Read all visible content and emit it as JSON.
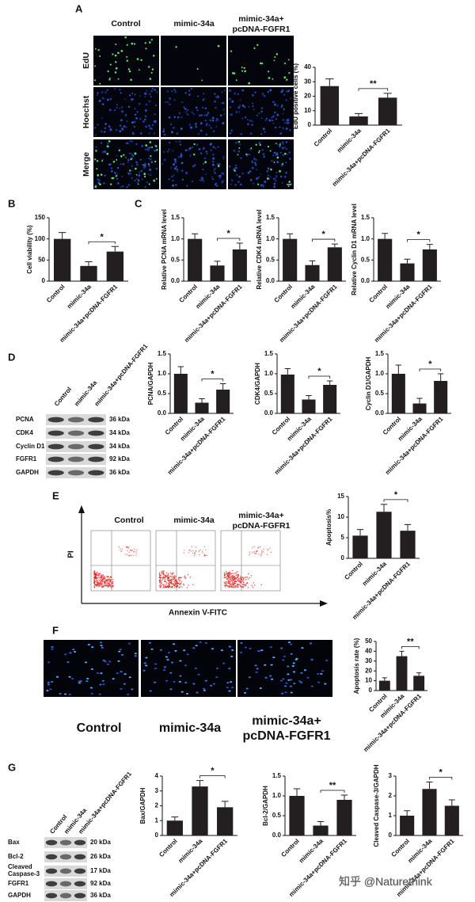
{
  "figure": {
    "panel_labels": [
      "A",
      "B",
      "C",
      "D",
      "E",
      "F",
      "G"
    ],
    "panel_a": {
      "columns": [
        "Control",
        "mimic-34a",
        "mimic-34a+",
        "pcDNA-FGFR1"
      ],
      "rows": [
        "EdU",
        "Hoechst",
        "Merge"
      ]
    },
    "panel_d": {
      "lanes": [
        "Control",
        "mimic-34a",
        "mimic-34a+pcDNA-FGFR1"
      ],
      "bands": [
        {
          "protein": "PCNA",
          "size": "36 kDa"
        },
        {
          "protein": "CDK4",
          "size": "34 kDa"
        },
        {
          "protein": "Cyclin D1",
          "size": "34 kDa"
        },
        {
          "protein": "FGFR1",
          "size": "92 kDa"
        },
        {
          "protein": "GAPDH",
          "size": "36 kDa"
        }
      ]
    },
    "panel_e": {
      "groups": [
        "Control",
        "mimic-34a",
        "mimic-34a+",
        "pcDNA-FGFR1"
      ],
      "y_axis": "PI",
      "x_axis": "Annexin V-FITC"
    },
    "panel_f": {
      "groups": [
        "Control",
        "mimic-34a",
        "mimic-34a+",
        "pcDNA-FGFR1"
      ]
    },
    "panel_g": {
      "lanes": [
        "Control",
        "mimic-34a",
        "mimic-34a+pcDNA-FGFR1"
      ],
      "bands": [
        {
          "protein": "Bax",
          "size": "20 kDa"
        },
        {
          "protein": "Bcl-2",
          "size": "26 kDa"
        },
        {
          "protein": [
            "Cleaved",
            "Caspase-3"
          ],
          "size": "17 kDa"
        },
        {
          "protein": "FGFR1",
          "size": "92 kDa"
        },
        {
          "protein": "GAPDH",
          "size": "36 kDa"
        }
      ]
    },
    "watermark": "知乎 @Naturethink"
  },
  "chart_data": [
    {
      "type": "bar",
      "ylabel": "EdU positive cells (%)",
      "categories": [
        "Control",
        "mimic-34a",
        "mimic-34a+pcDNA-FGFR1"
      ],
      "values": [
        27,
        6,
        19
      ],
      "errors": [
        5,
        2,
        3
      ],
      "significance": "**",
      "color": "#231f20",
      "ylim": [
        0,
        40
      ],
      "yticks": [
        0,
        10,
        20,
        30,
        40
      ]
    },
    {
      "type": "bar",
      "ylabel": "Cell viability (%)",
      "categories": [
        "Control",
        "mimic-34a",
        "mimic-34a+pcDNA-FGFR1"
      ],
      "values": [
        100,
        36,
        70
      ],
      "errors": [
        15,
        10,
        12
      ],
      "significance": "*",
      "color": "#231f20",
      "ylim": [
        0,
        150
      ],
      "yticks": [
        0,
        50,
        100,
        150
      ]
    },
    {
      "type": "bar",
      "ylabel": "Relative PCNA mRNA level",
      "categories": [
        "Control",
        "mimic-34a",
        "mimic-34a+pcDNA-FGFR1"
      ],
      "values": [
        1.0,
        0.37,
        0.75
      ],
      "errors": [
        0.12,
        0.1,
        0.15
      ],
      "significance": "*",
      "color": "#231f20",
      "ylim": [
        0,
        1.5
      ],
      "yticks": [
        {
          "value": 0,
          "label": "0.0"
        },
        0.5,
        {
          "value": 1,
          "label": "1.0"
        },
        1.5
      ]
    },
    {
      "type": "bar",
      "ylabel": "Relative CDK4 mRNA level",
      "categories": [
        "Control",
        "mimic-34a",
        "mimic-34a+pcDNA-FGFR1"
      ],
      "values": [
        1.0,
        0.38,
        0.8
      ],
      "errors": [
        0.12,
        0.1,
        0.08
      ],
      "significance": "*",
      "color": "#231f20",
      "ylim": [
        0,
        1.5
      ],
      "yticks": [
        {
          "value": 0,
          "label": "0.0"
        },
        0.5,
        {
          "value": 1,
          "label": "1.0"
        },
        1.5
      ]
    },
    {
      "type": "bar",
      "ylabel": "Relative Cyclin D1 mRNA level",
      "categories": [
        "Control",
        "mimic-34a",
        "mimic-34a+pcDNA-FGFR1"
      ],
      "values": [
        1.0,
        0.42,
        0.75
      ],
      "errors": [
        0.13,
        0.1,
        0.12
      ],
      "significance": "*",
      "color": "#231f20",
      "ylim": [
        0,
        1.5
      ],
      "yticks": [
        {
          "value": 0,
          "label": "0.0"
        },
        0.5,
        {
          "value": 1,
          "label": "1.0"
        },
        1.5
      ]
    },
    {
      "type": "bar",
      "ylabel": "PCNA/GAPDH",
      "categories": [
        "Control",
        "mimic-34a",
        "mimic-34a+pcDNA-FGFR1"
      ],
      "values": [
        1.0,
        0.27,
        0.6
      ],
      "errors": [
        0.18,
        0.1,
        0.15
      ],
      "significance": "*",
      "color": "#231f20",
      "ylim": [
        0,
        1.5
      ],
      "yticks": [
        {
          "value": 0,
          "label": "0.0"
        },
        0.5,
        {
          "value": 1,
          "label": "1.0"
        },
        1.5
      ]
    },
    {
      "type": "bar",
      "ylabel": "CDK4/GAPDH",
      "categories": [
        "Control",
        "mimic-34a",
        "mimic-34a+pcDNA-FGFR1"
      ],
      "values": [
        0.98,
        0.35,
        0.72
      ],
      "errors": [
        0.15,
        0.1,
        0.1
      ],
      "significance": "*",
      "color": "#231f20",
      "ylim": [
        0,
        1.5
      ],
      "yticks": [
        {
          "value": 0,
          "label": "0.0"
        },
        0.5,
        {
          "value": 1,
          "label": "1.0"
        },
        1.5
      ]
    },
    {
      "type": "bar",
      "ylabel": "Cyclin D1/GAPDH",
      "categories": [
        "Control",
        "mimic-34a",
        "mimic-34a+pcDNA-FGFR1"
      ],
      "values": [
        1.0,
        0.25,
        0.82
      ],
      "errors": [
        0.22,
        0.13,
        0.18
      ],
      "significance": "*",
      "color": "#231f20",
      "ylim": [
        0,
        1.5
      ],
      "yticks": [
        {
          "value": 0,
          "label": "0.0"
        },
        0.5,
        {
          "value": 1,
          "label": "1.0"
        },
        1.5
      ]
    },
    {
      "type": "bar",
      "ylabel": "Apoptosis%",
      "categories": [
        "Control",
        "mimic-34a",
        "mimic-34a+pcDNA-FGFR1"
      ],
      "values": [
        5.5,
        11.3,
        6.7
      ],
      "errors": [
        1.5,
        1.8,
        1.5
      ],
      "significance": "*",
      "color": "#231f20",
      "ylim": [
        0,
        15
      ],
      "yticks": [
        0,
        5,
        10,
        15
      ]
    },
    {
      "type": "bar",
      "ylabel": "Apoptosis rate (%)",
      "categories": [
        "Control",
        "mimic-34a",
        "mimic-34a+pcDNA-FGFR1"
      ],
      "values": [
        10,
        35,
        15
      ],
      "errors": [
        3,
        5,
        3
      ],
      "significance": "**",
      "color": "#231f20",
      "ylim": [
        0,
        50
      ],
      "yticks": [
        0,
        10,
        20,
        30,
        40,
        50
      ]
    },
    {
      "type": "bar",
      "ylabel": "Bax/GAPDH",
      "categories": [
        "Control",
        "mimic-34a",
        "mimic-34a+pcDNA-FGFR1"
      ],
      "values": [
        1.0,
        3.3,
        1.9
      ],
      "errors": [
        0.25,
        0.4,
        0.4
      ],
      "significance": "*",
      "color": "#231f20",
      "ylim": [
        0,
        4
      ],
      "yticks": [
        0,
        1,
        2,
        3,
        4
      ]
    },
    {
      "type": "bar",
      "ylabel": "Bcl-2/GAPDH",
      "categories": [
        "Control",
        "mimic-34a",
        "mimic-34a+pcDNA-FGFR1"
      ],
      "values": [
        1.0,
        0.25,
        0.9
      ],
      "errors": [
        0.18,
        0.1,
        0.12
      ],
      "significance": "**",
      "color": "#231f20",
      "ylim": [
        0,
        1.5
      ],
      "yticks": [
        {
          "value": 0,
          "label": "0.0"
        },
        0.5,
        {
          "value": 1,
          "label": "1.0"
        },
        1.5
      ]
    },
    {
      "type": "bar",
      "ylabel": "Cleaved Caspase-3/GAPDH",
      "categories": [
        "Control",
        "mimic-34a",
        "mimic-34a+pcDNA-FGFR1"
      ],
      "values": [
        1.0,
        2.35,
        1.5
      ],
      "errors": [
        0.25,
        0.35,
        0.3
      ],
      "significance": "*",
      "color": "#231f20",
      "ylim": [
        0,
        3
      ],
      "yticks": [
        0,
        1,
        2,
        3
      ]
    }
  ]
}
